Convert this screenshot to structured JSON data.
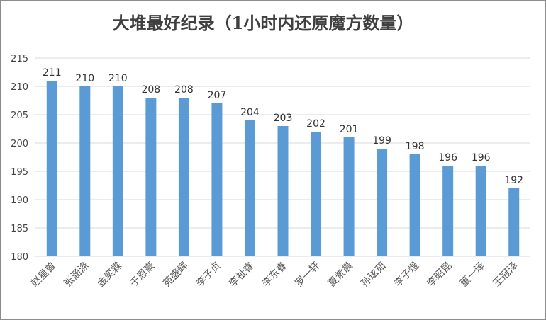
{
  "chart_data": {
    "type": "bar",
    "title": "大堆最好纪录（1小时内还原魔方数量）",
    "categories": [
      "赵星曾",
      "张涵涤",
      "金奕霖",
      "于恩豪",
      "苑盛辉",
      "李子贞",
      "李祉睿",
      "李东睿",
      "罗一轩",
      "夏紫晨",
      "孙玹茹",
      "李子煜",
      "李昭昆",
      "董一泽",
      "王冠泽"
    ],
    "values": [
      211,
      210,
      210,
      208,
      208,
      207,
      204,
      203,
      202,
      201,
      199,
      198,
      196,
      196,
      192
    ],
    "ylim": [
      180,
      215
    ],
    "yticks": [
      180,
      185,
      190,
      195,
      200,
      205,
      210,
      215
    ],
    "xlabel": "",
    "ylabel": "",
    "grid": true,
    "legend": "none",
    "bar_color": "#5b9bd5",
    "grid_color": "#d9d9d9"
  }
}
